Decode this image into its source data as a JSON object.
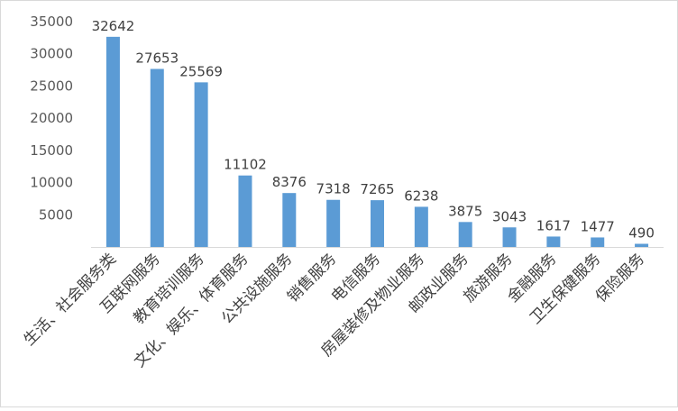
{
  "chart_data": {
    "type": "bar",
    "title": "",
    "xlabel": "",
    "ylabel": "",
    "categories": [
      "生活、社会服务类",
      "互联网服务",
      "教育培训服务",
      "文化、娱乐、体育服务",
      "公共设施服务",
      "销售服务",
      "电信服务",
      "房屋装修及物业服务",
      "邮政业服务",
      "旅游服务",
      "金融服务",
      "卫生保健服务",
      "保险服务"
    ],
    "values": [
      32642,
      27653,
      25569,
      11102,
      8376,
      7318,
      7265,
      6238,
      3875,
      3043,
      1617,
      1477,
      490
    ],
    "yticks": [
      5000,
      10000,
      15000,
      20000,
      25000,
      30000,
      35000
    ],
    "ylim": [
      0,
      35000
    ],
    "grid": false,
    "legend": "none",
    "bar_color": "#5b9bd5"
  }
}
